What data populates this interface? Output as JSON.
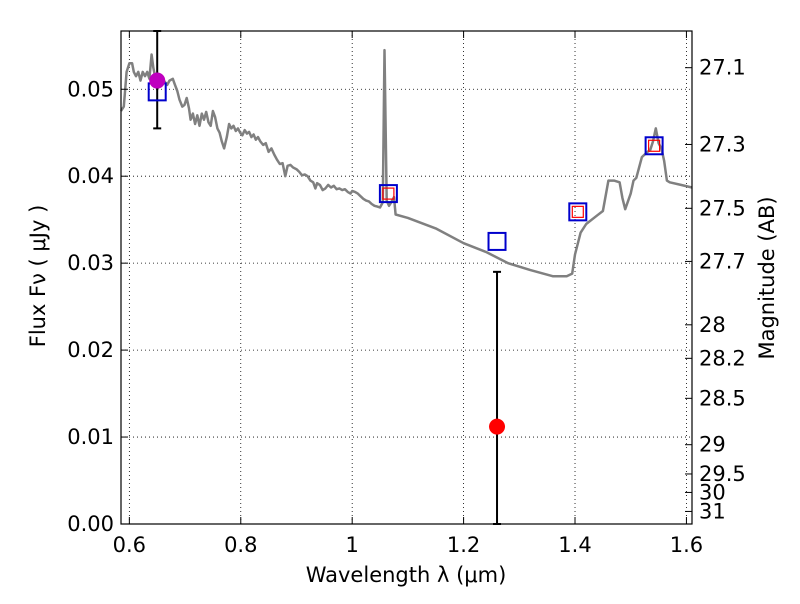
{
  "chart_data": {
    "type": "line",
    "xlabel": "Wavelength  λ (μm)",
    "ylabel": "Flux  Fν ( μJy )",
    "ylabel_right": "Magnitude (AB)",
    "xlim": [
      0.585,
      1.61
    ],
    "ylim": [
      0.0,
      0.0567
    ],
    "grid": true,
    "x_ticks": [
      {
        "value": 0.6,
        "label": "0.6"
      },
      {
        "value": 0.8,
        "label": "0.8"
      },
      {
        "value": 1.0,
        "label": "1"
      },
      {
        "value": 1.2,
        "label": "1.2"
      },
      {
        "value": 1.4,
        "label": "1.4"
      },
      {
        "value": 1.6,
        "label": "1.6"
      }
    ],
    "y_ticks": [
      {
        "value": 0.0,
        "label": "0.00"
      },
      {
        "value": 0.01,
        "label": "0.01"
      },
      {
        "value": 0.02,
        "label": "0.02"
      },
      {
        "value": 0.03,
        "label": "0.03"
      },
      {
        "value": 0.04,
        "label": "0.04"
      },
      {
        "value": 0.05,
        "label": "0.05"
      }
    ],
    "mag_ticks": [
      {
        "value": 27.1,
        "label": "27.1"
      },
      {
        "value": 27.3,
        "label": "27.3"
      },
      {
        "value": 27.5,
        "label": "27.5"
      },
      {
        "value": 27.7,
        "label": "27.7"
      },
      {
        "value": 28.0,
        "label": "28"
      },
      {
        "value": 28.2,
        "label": "28.2"
      },
      {
        "value": 28.5,
        "label": "28.5"
      },
      {
        "value": 29.0,
        "label": "29"
      },
      {
        "value": 29.5,
        "label": "29.5"
      },
      {
        "value": 30.0,
        "label": "30"
      },
      {
        "value": 31.0,
        "label": "31"
      }
    ],
    "model_spectrum": {
      "color": "#808080",
      "points": [
        [
          0.585,
          0.0475
        ],
        [
          0.59,
          0.048
        ],
        [
          0.595,
          0.052
        ],
        [
          0.6,
          0.053
        ],
        [
          0.605,
          0.053
        ],
        [
          0.608,
          0.052
        ],
        [
          0.612,
          0.0515
        ],
        [
          0.616,
          0.052
        ],
        [
          0.62,
          0.051
        ],
        [
          0.624,
          0.052
        ],
        [
          0.628,
          0.0515
        ],
        [
          0.632,
          0.052
        ],
        [
          0.636,
          0.0512
        ],
        [
          0.64,
          0.054
        ],
        [
          0.643,
          0.0525
        ],
        [
          0.646,
          0.0515
        ],
        [
          0.65,
          0.05
        ],
        [
          0.654,
          0.0505
        ],
        [
          0.658,
          0.0515
        ],
        [
          0.662,
          0.051
        ],
        [
          0.668,
          0.0505
        ],
        [
          0.672,
          0.051
        ],
        [
          0.678,
          0.0512
        ],
        [
          0.682,
          0.0505
        ],
        [
          0.686,
          0.0498
        ],
        [
          0.69,
          0.0488
        ],
        [
          0.695,
          0.048
        ],
        [
          0.699,
          0.0482
        ],
        [
          0.703,
          0.049
        ],
        [
          0.707,
          0.0478
        ],
        [
          0.71,
          0.0465
        ],
        [
          0.714,
          0.0472
        ],
        [
          0.718,
          0.046
        ],
        [
          0.722,
          0.047
        ],
        [
          0.726,
          0.0458
        ],
        [
          0.73,
          0.0472
        ],
        [
          0.734,
          0.0465
        ],
        [
          0.738,
          0.0474
        ],
        [
          0.742,
          0.0462
        ],
        [
          0.746,
          0.0458
        ],
        [
          0.75,
          0.0475
        ],
        [
          0.754,
          0.0468
        ],
        [
          0.758,
          0.0455
        ],
        [
          0.762,
          0.045
        ],
        [
          0.766,
          0.044
        ],
        [
          0.77,
          0.0432
        ],
        [
          0.775,
          0.0445
        ],
        [
          0.779,
          0.046
        ],
        [
          0.783,
          0.0455
        ],
        [
          0.787,
          0.0458
        ],
        [
          0.791,
          0.0452
        ],
        [
          0.795,
          0.0455
        ],
        [
          0.799,
          0.045
        ],
        [
          0.803,
          0.0447
        ],
        [
          0.807,
          0.0453
        ],
        [
          0.811,
          0.0449
        ],
        [
          0.815,
          0.0451
        ],
        [
          0.819,
          0.0445
        ],
        [
          0.823,
          0.0448
        ],
        [
          0.827,
          0.0442
        ],
        [
          0.831,
          0.0445
        ],
        [
          0.835,
          0.044
        ],
        [
          0.84,
          0.0436
        ],
        [
          0.845,
          0.0438
        ],
        [
          0.85,
          0.0428
        ],
        [
          0.855,
          0.0432
        ],
        [
          0.86,
          0.0425
        ],
        [
          0.865,
          0.0419
        ],
        [
          0.87,
          0.0414
        ],
        [
          0.875,
          0.0415
        ],
        [
          0.88,
          0.04
        ],
        [
          0.884,
          0.0412
        ],
        [
          0.889,
          0.0413
        ],
        [
          0.894,
          0.041
        ],
        [
          0.9,
          0.0408
        ],
        [
          0.905,
          0.0405
        ],
        [
          0.91,
          0.0401
        ],
        [
          0.915,
          0.0402
        ],
        [
          0.92,
          0.04
        ],
        [
          0.925,
          0.0395
        ],
        [
          0.93,
          0.0393
        ],
        [
          0.934,
          0.0386
        ],
        [
          0.937,
          0.0392
        ],
        [
          0.942,
          0.039
        ],
        [
          0.947,
          0.0384
        ],
        [
          0.952,
          0.0386
        ],
        [
          0.957,
          0.039
        ],
        [
          0.962,
          0.0387
        ],
        [
          0.967,
          0.0389
        ],
        [
          0.972,
          0.0385
        ],
        [
          0.977,
          0.0386
        ],
        [
          0.982,
          0.0384
        ],
        [
          0.987,
          0.0385
        ],
        [
          0.992,
          0.0382
        ],
        [
          0.997,
          0.038
        ],
        [
          1.0,
          0.0383
        ],
        [
          1.005,
          0.0382
        ],
        [
          1.01,
          0.038
        ],
        [
          1.015,
          0.0377
        ],
        [
          1.02,
          0.0374
        ],
        [
          1.025,
          0.0372
        ],
        [
          1.03,
          0.0371
        ],
        [
          1.035,
          0.0368
        ],
        [
          1.04,
          0.0366
        ],
        [
          1.045,
          0.0365
        ],
        [
          1.05,
          0.0364
        ],
        [
          1.055,
          0.037
        ],
        [
          1.058,
          0.0545
        ],
        [
          1.062,
          0.0372
        ],
        [
          1.066,
          0.0366
        ],
        [
          1.07,
          0.037
        ],
        [
          1.075,
          0.0376
        ],
        [
          1.078,
          0.0356
        ],
        [
          1.1,
          0.0352
        ],
        [
          1.15,
          0.034
        ],
        [
          1.2,
          0.0323
        ],
        [
          1.24,
          0.0313
        ],
        [
          1.28,
          0.03
        ],
        [
          1.32,
          0.0292
        ],
        [
          1.36,
          0.0285
        ],
        [
          1.385,
          0.0285
        ],
        [
          1.395,
          0.0288
        ],
        [
          1.4,
          0.031
        ],
        [
          1.41,
          0.0335
        ],
        [
          1.42,
          0.0345
        ],
        [
          1.44,
          0.0355
        ],
        [
          1.45,
          0.036
        ],
        [
          1.46,
          0.0395
        ],
        [
          1.47,
          0.0395
        ],
        [
          1.48,
          0.0393
        ],
        [
          1.485,
          0.0375
        ],
        [
          1.49,
          0.0362
        ],
        [
          1.5,
          0.038
        ],
        [
          1.505,
          0.0395
        ],
        [
          1.51,
          0.0398
        ],
        [
          1.515,
          0.041
        ],
        [
          1.52,
          0.0422
        ],
        [
          1.53,
          0.0428
        ],
        [
          1.535,
          0.043
        ],
        [
          1.54,
          0.044
        ],
        [
          1.545,
          0.0455
        ],
        [
          1.55,
          0.0438
        ],
        [
          1.555,
          0.0432
        ],
        [
          1.56,
          0.0418
        ],
        [
          1.565,
          0.0395
        ],
        [
          1.57,
          0.0393
        ],
        [
          1.59,
          0.039
        ],
        [
          1.61,
          0.0387
        ]
      ]
    },
    "synthetic_blue_squares": [
      {
        "x": 0.65,
        "y": 0.0497
      },
      {
        "x": 1.065,
        "y": 0.038
      },
      {
        "x": 1.26,
        "y": 0.0325
      },
      {
        "x": 1.405,
        "y": 0.0359
      },
      {
        "x": 1.542,
        "y": 0.0435
      }
    ],
    "synthetic_red_squares": [
      {
        "x": 1.065,
        "y": 0.038
      },
      {
        "x": 1.405,
        "y": 0.0359
      },
      {
        "x": 1.542,
        "y": 0.0435
      }
    ],
    "observed_points": [
      {
        "x": 0.65,
        "y": 0.051,
        "yerr_low": 0.0455,
        "yerr_high": 0.0567,
        "color": "#bf00bf"
      },
      {
        "x": 1.26,
        "y": 0.0112,
        "yerr_low": 0.0,
        "yerr_high": 0.029,
        "color": "#ff0000"
      }
    ],
    "colors": {
      "spectrum": "#808080",
      "blue_square": "#0000cc",
      "red_square": "#ff0000",
      "grid": "#000000"
    }
  }
}
